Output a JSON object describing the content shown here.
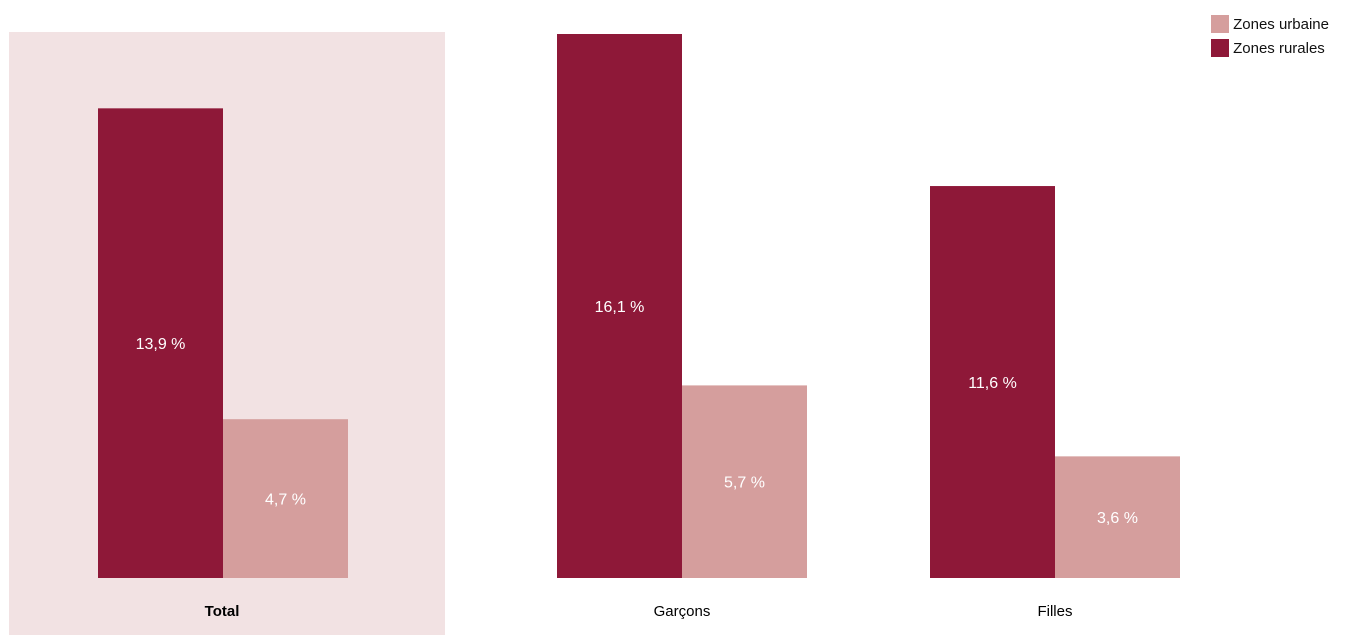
{
  "chart_data": {
    "type": "bar",
    "categories": [
      "Total",
      "Garçons",
      "Filles"
    ],
    "highlighted_category": "Total",
    "series": [
      {
        "name": "Zones rurales",
        "values": [
          13.9,
          16.1,
          11.6
        ],
        "labels": [
          "13,9 %",
          "16,1 %",
          "11,6 %"
        ],
        "color": "#8e1838"
      },
      {
        "name": "Zones urbaine",
        "values": [
          4.7,
          5.7,
          3.6
        ],
        "labels": [
          "4,7 %",
          "5,7 %",
          "3,6 %"
        ],
        "color": "#d59e9d"
      }
    ],
    "title": "",
    "xlabel": "",
    "ylabel": "",
    "ylim": [
      0,
      16.1
    ],
    "grid": false,
    "legend_position": "top-right",
    "highlight_color": "#f2e2e3"
  },
  "legend": {
    "items": [
      {
        "label": "Zones urbaine",
        "color": "#d59e9d"
      },
      {
        "label": "Zones rurales",
        "color": "#8e1838"
      }
    ]
  }
}
